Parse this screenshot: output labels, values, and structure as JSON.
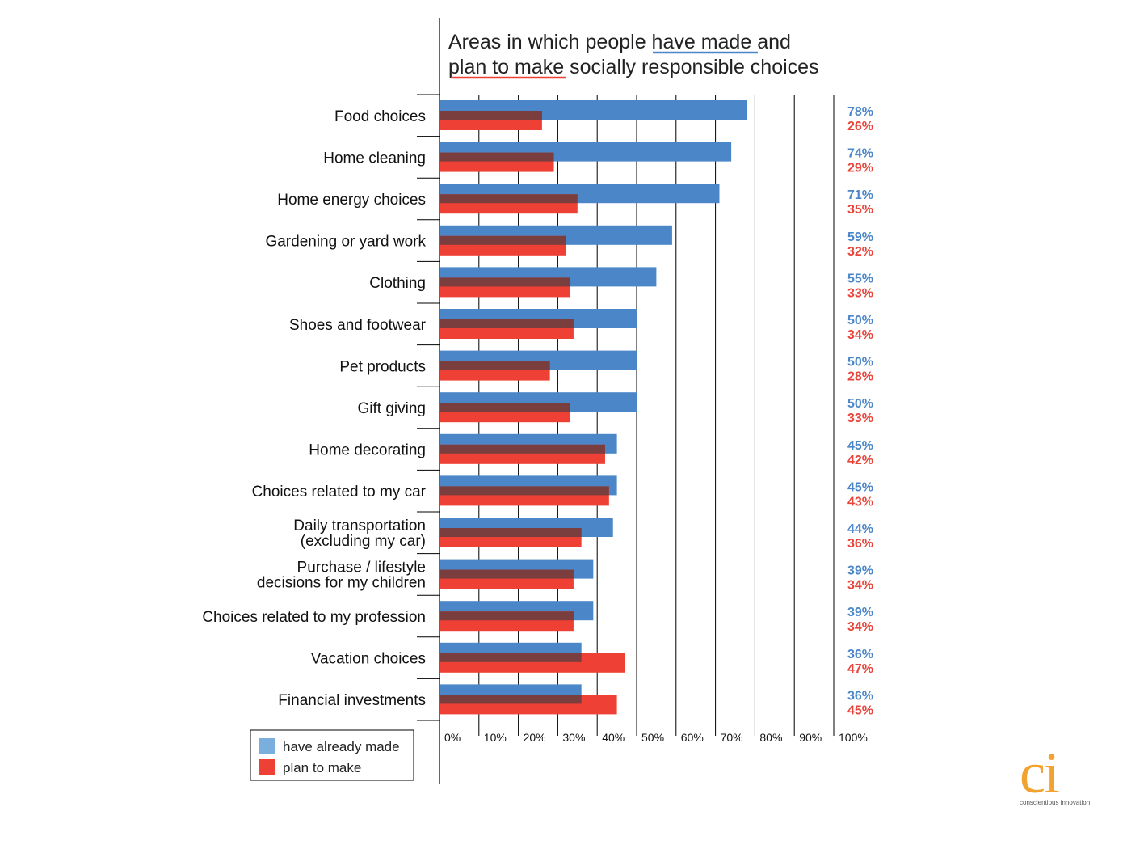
{
  "chart_data": {
    "type": "bar",
    "orientation": "horizontal",
    "title_lines": [
      [
        "Areas in which people ",
        "have made ",
        "and"
      ],
      [
        "plan to make",
        " socially responsible choices"
      ]
    ],
    "categories": [
      [
        "Food choices"
      ],
      [
        "Home cleaning"
      ],
      [
        "Home energy choices"
      ],
      [
        "Gardening or yard work"
      ],
      [
        "Clothing"
      ],
      [
        "Shoes and footwear"
      ],
      [
        "Pet products"
      ],
      [
        "Gift giving"
      ],
      [
        "Home decorating"
      ],
      [
        "Choices related to my car"
      ],
      [
        "Daily transportation",
        "(excluding my car)"
      ],
      [
        "Purchase / lifestyle",
        "decisions for my children"
      ],
      [
        "Choices related to my profession"
      ],
      [
        "Vacation choices"
      ],
      [
        "Financial investments"
      ]
    ],
    "series": [
      {
        "name": "have already made",
        "color": "#4a86c8",
        "values": [
          78,
          74,
          71,
          59,
          55,
          50,
          50,
          50,
          45,
          45,
          44,
          39,
          39,
          36,
          36
        ],
        "labels": [
          "78%",
          "74%",
          "71%",
          "59%",
          "55%",
          "50%",
          "50%",
          "50%",
          "45%",
          "45%",
          "44%",
          "39%",
          "39%",
          "36%",
          "36%"
        ]
      },
      {
        "name": "plan to make",
        "color": "#ee4035",
        "values": [
          26,
          29,
          35,
          32,
          33,
          34,
          28,
          33,
          42,
          43,
          36,
          34,
          34,
          47,
          45
        ],
        "labels": [
          "26%",
          "29%",
          "35%",
          "32%",
          "33%",
          "34%",
          "28%",
          "33%",
          "42%",
          "43%",
          "36%",
          "34%",
          "34%",
          "47%",
          "45%"
        ]
      }
    ],
    "overlap_color": "#7a3e3e",
    "label_colors": {
      "made": "#4a86c8",
      "plan": "#e8443a"
    },
    "xlim": [
      0,
      100
    ],
    "xticks": [
      "0%",
      "10%",
      "20%",
      "30%",
      "40%",
      "50%",
      "60%",
      "70%",
      "80%",
      "90%",
      "100%"
    ],
    "grid": true,
    "legend": {
      "position": "bottom-left",
      "items": [
        {
          "label": "have already made",
          "color": "#7aaedc"
        },
        {
          "label": "plan to make",
          "color": "#ee4035"
        }
      ]
    }
  },
  "logo": {
    "mark": "ci",
    "tagline": "conscientious innovation",
    "color": "#f2a230"
  }
}
